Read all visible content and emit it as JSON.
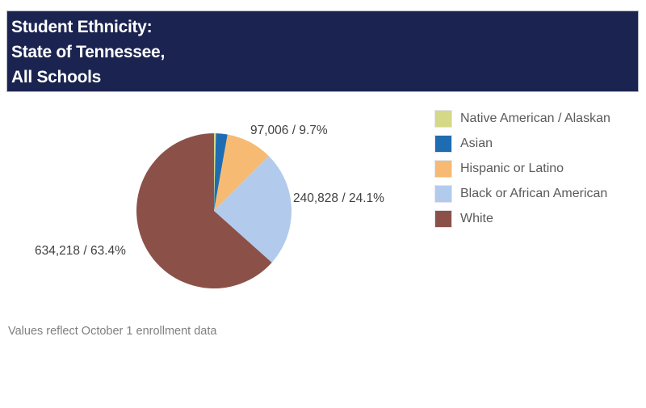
{
  "header": {
    "title_lines": [
      "Student Ethnicity:",
      "State of Tennessee,",
      "All Schools"
    ],
    "background_color": "#1b2450",
    "text_color": "#ffffff"
  },
  "chart_data": {
    "type": "pie",
    "title": "Student Ethnicity: State of Tennessee, All Schools",
    "legend_position": "right",
    "start_angle": "12-o-clock, clockwise",
    "slices": [
      {
        "label": "Native American / Alaskan",
        "percent": 0.4,
        "percent_estimated": true,
        "value": null,
        "data_label": "",
        "color": "#d5d886"
      },
      {
        "label": "Asian",
        "percent": 2.4,
        "percent_estimated": true,
        "value": null,
        "data_label": "",
        "color": "#1e6db2"
      },
      {
        "label": "Hispanic or Latino",
        "percent": 9.7,
        "value": 97006,
        "data_label": "97,006 / 9.7%",
        "color": "#f7ba72"
      },
      {
        "label": "Black or African American",
        "percent": 24.1,
        "value": 240828,
        "data_label": "240,828 / 24.1%",
        "color": "#b2cbec"
      },
      {
        "label": "White",
        "percent": 63.4,
        "value": 634218,
        "data_label": "634,218 / 63.4%",
        "color": "#8b5148"
      }
    ],
    "note": "Values reflect October 1 enrollment data"
  }
}
